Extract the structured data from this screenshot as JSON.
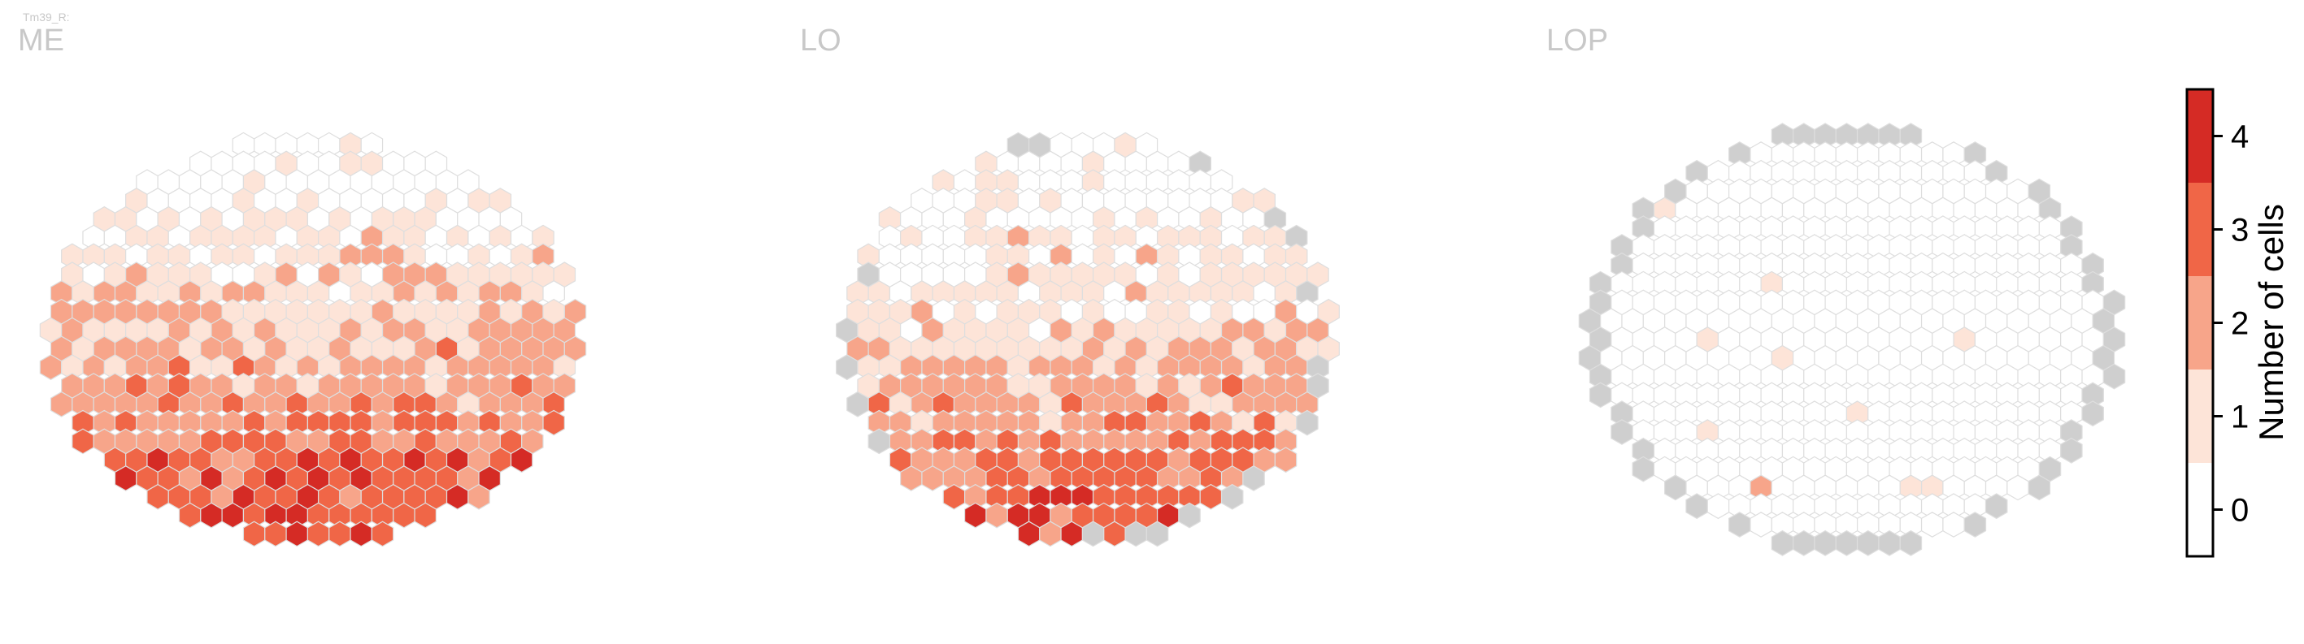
{
  "header": {
    "small_label": "Tm39_R:"
  },
  "chart_data": {
    "type": "heatmap",
    "panels": [
      {
        "title": "ME",
        "nrows": 22,
        "max_half": 12.5,
        "fill_rule": "me"
      },
      {
        "title": "LO",
        "nrows": 22,
        "max_half": 11.5,
        "fill_rule": "lo"
      },
      {
        "title": "LOP",
        "nrows": 23,
        "max_half": 12.5,
        "fill_rule": "lop"
      }
    ],
    "colorbar": {
      "label": "Number of cells",
      "ticks": [
        "0",
        "1",
        "2",
        "3",
        "4"
      ],
      "range": [
        -0.5,
        4.5
      ],
      "bins": [
        {
          "from": -0.5,
          "to": 0.5,
          "color": "#ffffff"
        },
        {
          "from": 0.5,
          "to": 1.5,
          "color": "#fde4d8"
        },
        {
          "from": 1.5,
          "to": 2.5,
          "color": "#f7a58a"
        },
        {
          "from": 2.5,
          "to": 3.5,
          "color": "#f06647"
        },
        {
          "from": 3.5,
          "to": 4.5,
          "color": "#d52b25"
        }
      ]
    },
    "colors": {
      "no_data": "#cfcfcf",
      "edge": "#dedede"
    }
  }
}
